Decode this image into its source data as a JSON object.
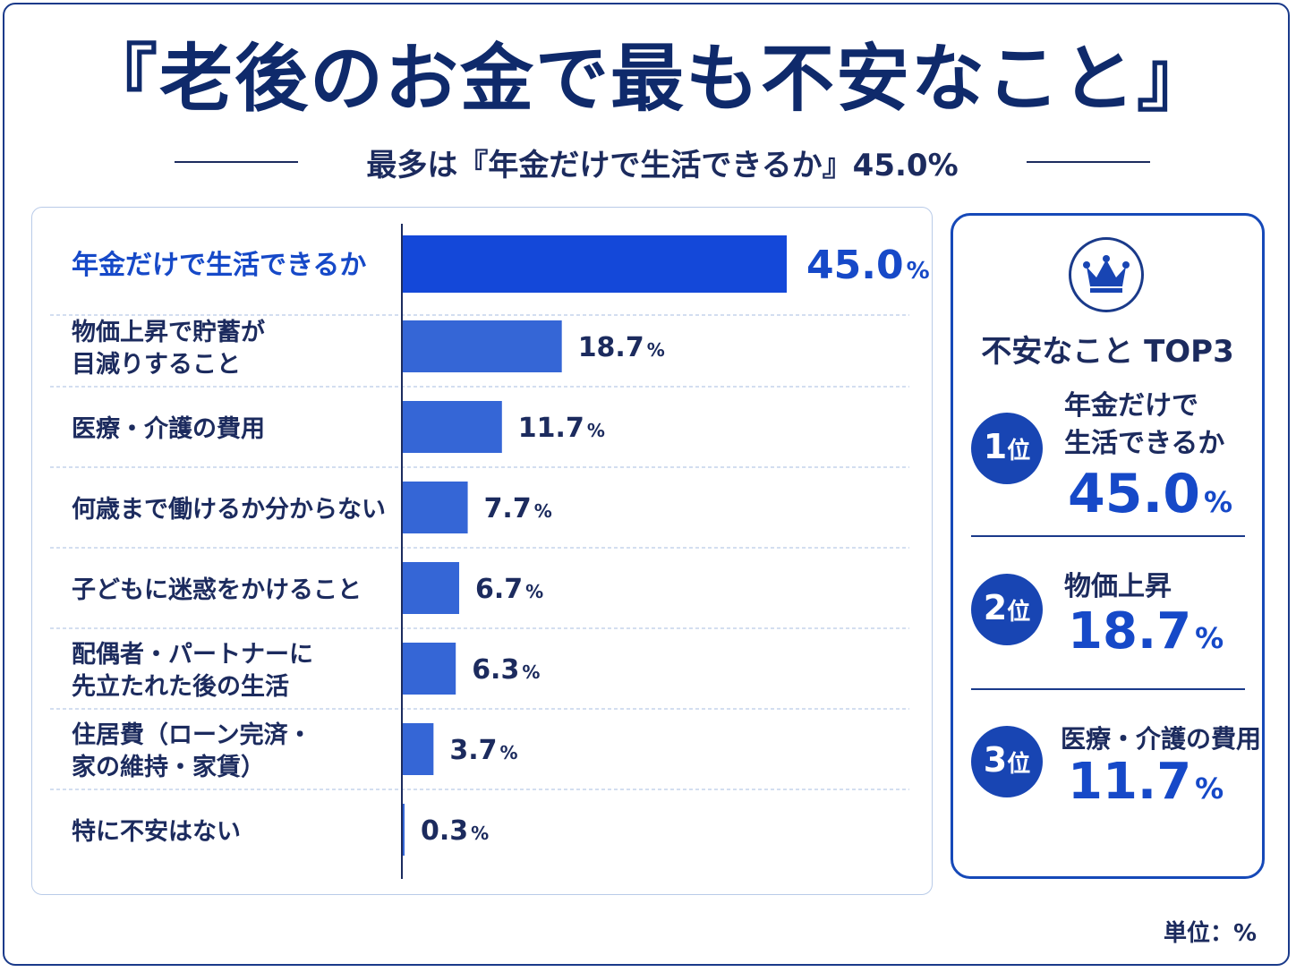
{
  "title": "『老後のお金で最も不安なこと』",
  "subtitle": "最多は『年金だけで生活できるか』45.0%",
  "unit_note": "単位：%",
  "colors": {
    "highlight_bar": "#1448d9",
    "bar": "#3566d6",
    "highlight_text": "#1649c8",
    "text": "#1c2b5e",
    "badge": "#1845b3"
  },
  "top3": {
    "title": "不安なこと TOP3",
    "icon": "crown-icon",
    "ranks": [
      {
        "rank": "1",
        "unit": "位",
        "label": "年金だけで\n生活できるか",
        "value": "45.0",
        "pct": "%"
      },
      {
        "rank": "2",
        "unit": "位",
        "label": "物価上昇",
        "value": "18.7",
        "pct": "%"
      },
      {
        "rank": "3",
        "unit": "位",
        "label": "医療・介護の費用",
        "value": "11.7",
        "pct": "%"
      }
    ]
  },
  "chart_data": {
    "type": "bar",
    "orientation": "horizontal",
    "title": "『老後のお金で最も不安なこと』",
    "subtitle": "最多は『年金だけで生活できるか』45.0%",
    "categories": [
      [
        "年金だけで生活できるか"
      ],
      [
        "物価上昇で貯蓄が",
        "目減りすること"
      ],
      [
        "医療・介護の費用"
      ],
      [
        "何歳まで働けるか分からない"
      ],
      [
        "子どもに迷惑をかけること"
      ],
      [
        "配偶者・パートナーに",
        "先立たれた後の生活"
      ],
      [
        "住居費（ローン完済・",
        "家の維持・家賃）"
      ],
      [
        "特に不安はない"
      ]
    ],
    "values": [
      45.0,
      18.7,
      11.7,
      7.7,
      6.7,
      6.3,
      3.7,
      0.3
    ],
    "value_labels": [
      "45.0",
      "18.7",
      "11.7",
      "7.7",
      "6.7",
      "6.3",
      "3.7",
      "0.3"
    ],
    "unit": "%",
    "highlight_index": 0,
    "xlim": [
      0,
      45
    ],
    "grid": false,
    "unit_note": "単位：%"
  }
}
